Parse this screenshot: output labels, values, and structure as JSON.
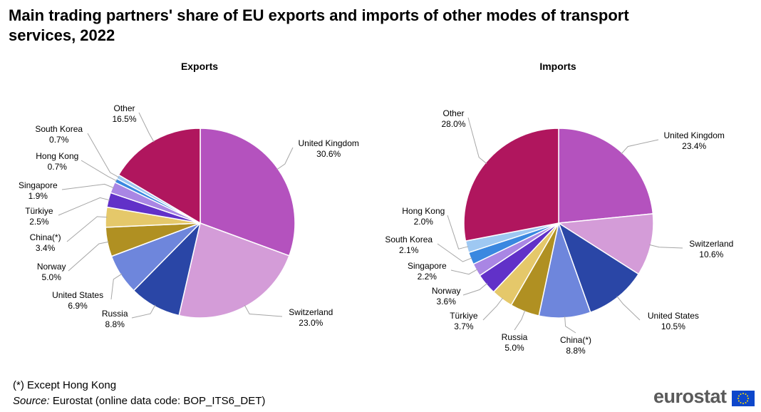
{
  "title": "Main trading partners' share of EU exports and imports of other modes of transport services, 2022",
  "chart_data": [
    {
      "type": "pie",
      "title": "Exports",
      "unit": "%",
      "slices": [
        {
          "label": "United Kingdom",
          "value": 30.6,
          "value_label": "30.6%",
          "color": "#b452be"
        },
        {
          "label": "Switzerland",
          "value": 23.0,
          "value_label": "23.0%",
          "color": "#d49cd8"
        },
        {
          "label": "Russia",
          "value": 8.8,
          "value_label": "8.8%",
          "color": "#2a46a6"
        },
        {
          "label": "United States",
          "value": 6.9,
          "value_label": "6.9%",
          "color": "#6e86dc"
        },
        {
          "label": "Norway",
          "value": 5.0,
          "value_label": "5.0%",
          "color": "#b09022"
        },
        {
          "label": "China(*)",
          "value": 3.4,
          "value_label": "3.4%",
          "color": "#e5c86a"
        },
        {
          "label": "Türkiye",
          "value": 2.5,
          "value_label": "2.5%",
          "color": "#6131c8"
        },
        {
          "label": "Singapore",
          "value": 1.9,
          "value_label": "1.9%",
          "color": "#a986e4"
        },
        {
          "label": "Hong Kong",
          "value": 0.7,
          "value_label": "0.7%",
          "color": "#3a88e0"
        },
        {
          "label": "South Korea",
          "value": 0.7,
          "value_label": "0.7%",
          "color": "#9ec8f2"
        },
        {
          "label": "Other",
          "value": 16.5,
          "value_label": "16.5%",
          "color": "#b0165e"
        }
      ]
    },
    {
      "type": "pie",
      "title": "Imports",
      "unit": "%",
      "slices": [
        {
          "label": "United Kingdom",
          "value": 23.4,
          "value_label": "23.4%",
          "color": "#b452be"
        },
        {
          "label": "Switzerland",
          "value": 10.6,
          "value_label": "10.6%",
          "color": "#d49cd8"
        },
        {
          "label": "United States",
          "value": 10.5,
          "value_label": "10.5%",
          "color": "#2a46a6"
        },
        {
          "label": "China(*)",
          "value": 8.8,
          "value_label": "8.8%",
          "color": "#6e86dc"
        },
        {
          "label": "Russia",
          "value": 5.0,
          "value_label": "5.0%",
          "color": "#b09022"
        },
        {
          "label": "Türkiye",
          "value": 3.7,
          "value_label": "3.7%",
          "color": "#e5c86a"
        },
        {
          "label": "Norway",
          "value": 3.6,
          "value_label": "3.6%",
          "color": "#6131c8"
        },
        {
          "label": "Singapore",
          "value": 2.2,
          "value_label": "2.2%",
          "color": "#a986e4"
        },
        {
          "label": "South Korea",
          "value": 2.1,
          "value_label": "2.1%",
          "color": "#3a88e0"
        },
        {
          "label": "Hong Kong",
          "value": 2.0,
          "value_label": "2.0%",
          "color": "#9ec8f2"
        },
        {
          "label": "Other",
          "value": 28.0,
          "value_label": "28.0%",
          "color": "#b0165e"
        }
      ]
    }
  ],
  "footnote": "(*) Except Hong Kong",
  "source": {
    "label": "Source:",
    "text": "Eurostat (online data code: BOP_ITS6_DET)"
  },
  "logo": {
    "text": "eurostat",
    "flag_color": "#0e47cb",
    "star_color": "#ffde00"
  }
}
